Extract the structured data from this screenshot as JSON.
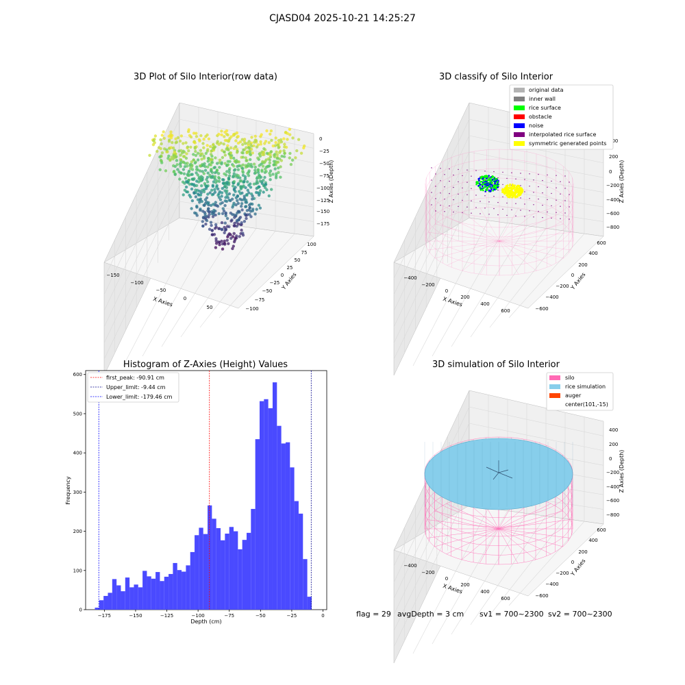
{
  "suptitle": "CJASD04 2025-10-21 14:25:27",
  "status": {
    "flag": "flag = 29",
    "avg_depth": "avgDepth = 3 cm",
    "sv1": "sv1 = 700~2300",
    "sv2": "sv2 = 700~2300"
  },
  "chart_data": [
    {
      "type": "scatter",
      "title": "3D Plot of Silo Interior(row data)",
      "xlabel": "X Axies",
      "ylabel": "Y Axies",
      "zlabel": "Z Axies (Depth)",
      "xticks": [
        "−150",
        "−100",
        "−50",
        "0",
        "50"
      ],
      "yticks": [
        "−100",
        "−75",
        "−50",
        "−25",
        "0",
        "25",
        "50",
        "75",
        "100"
      ],
      "zticks": [
        "0",
        "−25",
        "−50",
        "−75",
        "−100",
        "−125",
        "−150",
        "−175"
      ],
      "xlim": [
        -170,
        80
      ],
      "ylim": [
        -100,
        100
      ],
      "zlim": [
        -185,
        0
      ],
      "colormap": "viridis"
    },
    {
      "type": "scatter",
      "title": "3D classify of Silo Interior",
      "xlabel": "X Axies",
      "ylabel": "Y Axies",
      "zlabel": "Z Axies (Depth)",
      "xticks": [
        "−400",
        "−200",
        "0",
        "200",
        "400",
        "600"
      ],
      "yticks": [
        "−600",
        "−400",
        "−200",
        "0",
        "200",
        "400",
        "600"
      ],
      "zticks": [
        "400",
        "200",
        "0",
        "−200",
        "−400",
        "−600",
        "−800"
      ],
      "legend_position": "top-right",
      "legend": [
        {
          "label": "original data",
          "color": "#b3b3b3"
        },
        {
          "label": "inner wall",
          "color": "#808080"
        },
        {
          "label": "rice surface",
          "color": "#00ff00"
        },
        {
          "label": "obstacle",
          "color": "#ff0000"
        },
        {
          "label": "noise",
          "color": "#0000ff"
        },
        {
          "label": "interpolated rice surface",
          "color": "#800080"
        },
        {
          "label": "symmetric generated points",
          "color": "#ffff00"
        }
      ]
    },
    {
      "type": "bar",
      "title": "Histogram of Z-Axies (Height) Values",
      "xlabel": "Depth (cm)",
      "ylabel": "Frequency",
      "xlim": [
        -190,
        3
      ],
      "ylim": [
        0,
        610
      ],
      "xticks": [
        -175,
        -150,
        -125,
        -100,
        -75,
        -50,
        -25,
        0
      ],
      "xtick_labels": [
        "−175",
        "−150",
        "−125",
        "−100",
        "−75",
        "−50",
        "−25",
        "0"
      ],
      "yticks": [
        0,
        100,
        200,
        300,
        400,
        500,
        600
      ],
      "ytick_labels": [
        "0",
        "100",
        "200",
        "300",
        "400",
        "500",
        "600"
      ],
      "bar_color": "#4a4aff",
      "bin_start": -182.6,
      "bin_width": 3.47,
      "values": [
        5,
        24,
        35,
        43,
        78,
        62,
        47,
        82,
        57,
        64,
        57,
        99,
        85,
        79,
        96,
        73,
        84,
        91,
        119,
        101,
        97,
        113,
        147,
        190,
        209,
        193,
        266,
        232,
        208,
        177,
        194,
        211,
        200,
        154,
        178,
        196,
        257,
        435,
        532,
        537,
        514,
        580,
        469,
        424,
        427,
        363,
        277,
        245,
        129,
        33
      ],
      "legend_position": "top-left",
      "lines": [
        {
          "label": "first_peak: -90.91 cm",
          "x": -90.91,
          "color": "#ff0000"
        },
        {
          "label": "Upper_limit: -9.44 cm",
          "x": -9.44,
          "color": "#00008b"
        },
        {
          "label": "Lower_limit: -179.46 cm",
          "x": -179.46,
          "color": "#0000ff"
        }
      ]
    },
    {
      "type": "scatter",
      "title": "3D simulation of Silo Interior",
      "xlabel": "X Axies",
      "ylabel": "Y Axies",
      "zlabel": "Z Axies (Depth)",
      "xticks": [
        "−400",
        "−200",
        "0",
        "200",
        "400",
        "600"
      ],
      "yticks": [
        "−600",
        "−400",
        "−200",
        "0",
        "200",
        "400",
        "600"
      ],
      "zticks": [
        "400",
        "200",
        "0",
        "−200",
        "−400",
        "−600",
        "−800"
      ],
      "legend_position": "top-right",
      "legend": [
        {
          "label": "silo",
          "color": "#ff69b4"
        },
        {
          "label": "rice simulation",
          "color": "#87ceeb"
        },
        {
          "label": "auger",
          "color": "#ff4500"
        },
        {
          "label": "center(101,-15)",
          "color": ""
        }
      ]
    }
  ]
}
